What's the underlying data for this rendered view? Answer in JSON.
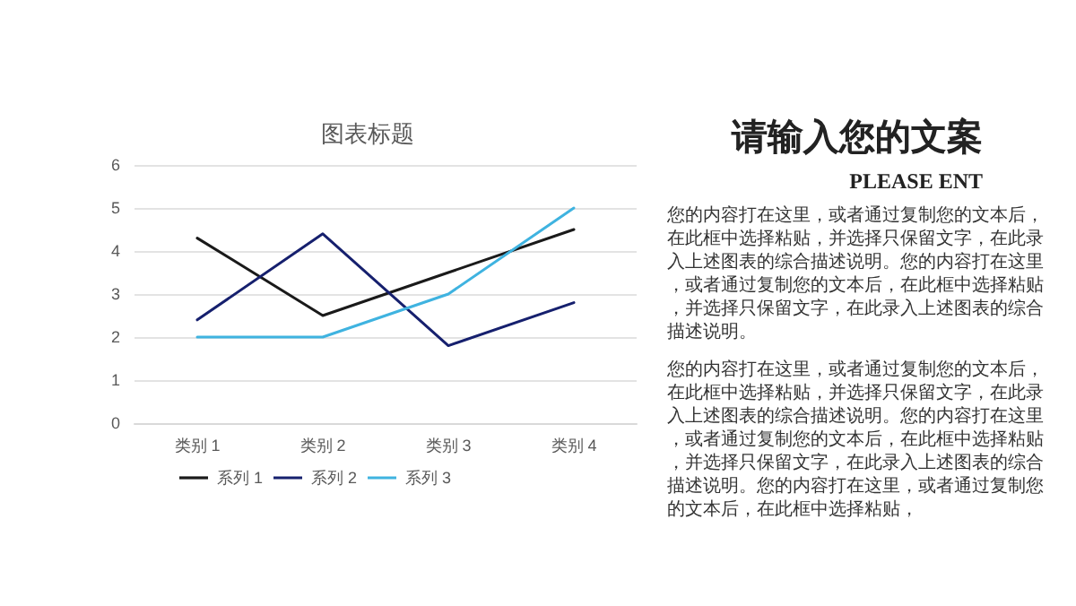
{
  "chart_data": {
    "type": "line",
    "title": "图表标题",
    "categories": [
      "类别 1",
      "类别 2",
      "类别 3",
      "类别 4"
    ],
    "series": [
      {
        "name": "系列 1",
        "color": "#1a1a1a",
        "values": [
          4.3,
          2.5,
          3.5,
          4.5
        ]
      },
      {
        "name": "系列 2",
        "color": "#16206e",
        "values": [
          2.4,
          4.4,
          1.8,
          2.8
        ]
      },
      {
        "name": "系列 3",
        "color": "#3fb3e0",
        "values": [
          2,
          2,
          3,
          5
        ]
      }
    ],
    "ylim": [
      0,
      6
    ],
    "yticks": [
      0,
      1,
      2,
      3,
      4,
      5,
      6
    ],
    "grid": "y",
    "legend": "bottom",
    "marker": "none",
    "line_style": "solid",
    "annotations": [
      "请输入您的文案",
      "PLEASE ENT",
      "您的内容打在这里，或者通过复制您的文本后，在此框中选择粘贴，并选择只保留文字，在此录入上述图表的综合描述说明。您的内容打在这里，或者通过复制您的文本后，在此框中选择粘贴，并选择只保留文字，在此录入上述图表的综合描述说明。",
      "您的内容打在这里，或者通过复制您的文本后，在此框中选择粘贴，并选择只保留文字，在此录入上述图表的综合描述说明。您的内容打在这里，或者通过复制您的文本后，在此框中选择粘贴，并选择只保留文字，在此录入上述图表的综合描述说明。您的内容打在这里，或者通过复制您的文本后，在此框中选择粘贴，"
    ]
  }
}
